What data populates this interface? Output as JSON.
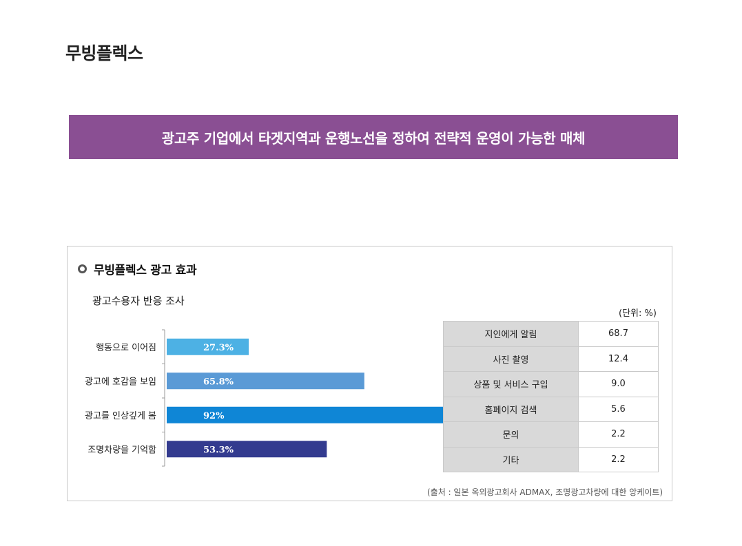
{
  "page": {
    "title": "무빙플렉스",
    "banner": "광고주 기업에서 타겟지역과 운행노선을 정하여 전략적 운영이 가능한 매체"
  },
  "section": {
    "title": "무빙플렉스 광고 효과",
    "subtitle": "광고수용자 반응 조사",
    "unit": "(단위: %)",
    "source": "(출처 : 일본 옥외광고회사 ADMAX, 조명광고차량에 대한 앙케이트)"
  },
  "colors": {
    "banner": "#8a4f93",
    "bars": [
      "#4db1e4",
      "#5a9ad6",
      "#0f86d6",
      "#333b8f"
    ],
    "table_header": "#d9d9d9"
  },
  "chart_data": [
    {
      "type": "bar",
      "orientation": "horizontal",
      "categories": [
        "행동으로 이어짐",
        "광고에 호감을 보임",
        "광고를 인상깊게 봄",
        "조명차량을 기억함"
      ],
      "values": [
        27.3,
        65.8,
        92,
        53.3
      ],
      "data_labels": [
        "27.3%",
        "65.8%",
        "92%",
        "53.3%"
      ],
      "xlim": [
        0,
        92
      ]
    },
    {
      "type": "table",
      "rows": [
        {
          "item": "지인에게 알림",
          "value": "68.7"
        },
        {
          "item": "사진 촬영",
          "value": "12.4"
        },
        {
          "item": "상품 및 서비스 구입",
          "value": "9.0"
        },
        {
          "item": "홈페이지 검색",
          "value": "5.6"
        },
        {
          "item": "문의",
          "value": "2.2"
        },
        {
          "item": "기타",
          "value": "2.2"
        }
      ]
    }
  ]
}
